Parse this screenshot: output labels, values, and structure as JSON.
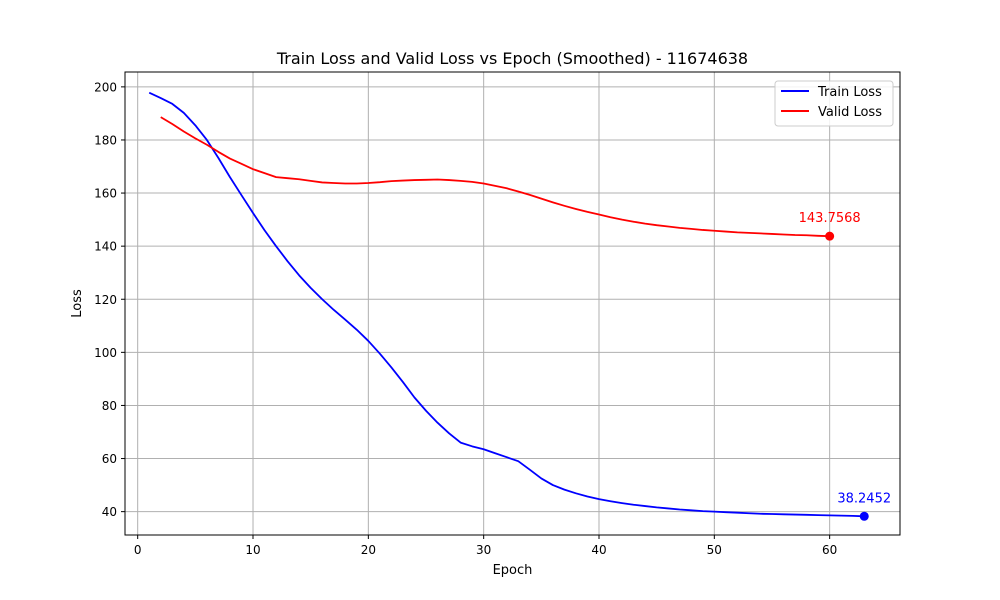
{
  "chart_data": {
    "type": "line",
    "title": "Train Loss and Valid Loss vs Epoch (Smoothed) - 11674638",
    "xlabel": "Epoch",
    "ylabel": "Loss",
    "xlim": [
      -1.1,
      66.1
    ],
    "ylim": [
      31.2,
      205.6
    ],
    "xticks": [
      0,
      10,
      20,
      30,
      40,
      50,
      60
    ],
    "yticks": [
      40,
      60,
      80,
      100,
      120,
      140,
      160,
      180,
      200
    ],
    "grid": true,
    "legend_position": "top-right",
    "series": [
      {
        "name": "Train Loss",
        "color": "#0000ff",
        "end_label": "38.2452",
        "x": [
          1,
          2,
          3,
          4,
          5,
          6,
          7,
          8,
          9,
          10,
          11,
          12,
          13,
          14,
          15,
          16,
          17,
          18,
          19,
          20,
          21,
          22,
          23,
          24,
          25,
          26,
          27,
          28,
          29,
          30,
          31,
          32,
          33,
          34,
          35,
          36,
          37,
          38,
          39,
          40,
          41,
          42,
          43,
          44,
          45,
          46,
          47,
          48,
          49,
          50,
          51,
          52,
          53,
          54,
          55,
          56,
          57,
          58,
          59,
          60,
          61,
          62,
          63
        ],
        "y": [
          197.8,
          195.8,
          193.6,
          190.2,
          185.5,
          180.0,
          173.2,
          166.0,
          159.2,
          152.5,
          146.0,
          140.0,
          134.3,
          129.0,
          124.3,
          120.0,
          116.0,
          112.3,
          108.5,
          104.3,
          99.5,
          94.3,
          88.8,
          83.0,
          78.0,
          73.5,
          69.5,
          66.0,
          64.6,
          63.5,
          62.0,
          60.5,
          59.0,
          55.8,
          52.5,
          50.0,
          48.3,
          46.9,
          45.7,
          44.7,
          43.9,
          43.2,
          42.6,
          42.1,
          41.6,
          41.2,
          40.8,
          40.5,
          40.2,
          40.0,
          39.8,
          39.6,
          39.4,
          39.2,
          39.1,
          39.0,
          38.9,
          38.8,
          38.7,
          38.6,
          38.5,
          38.4,
          38.2452
        ]
      },
      {
        "name": "Valid Loss",
        "color": "#ff0000",
        "end_label": "143.7568",
        "x": [
          2,
          3,
          4,
          5,
          6,
          7,
          8,
          9,
          10,
          11,
          12,
          13,
          14,
          15,
          16,
          17,
          18,
          19,
          20,
          21,
          22,
          23,
          24,
          25,
          26,
          27,
          28,
          29,
          30,
          31,
          32,
          33,
          34,
          35,
          36,
          37,
          38,
          39,
          40,
          41,
          42,
          43,
          44,
          45,
          46,
          47,
          48,
          49,
          50,
          51,
          52,
          53,
          54,
          55,
          56,
          57,
          58,
          59,
          60
        ],
        "y": [
          188.6,
          186.0,
          183.2,
          180.6,
          178.2,
          175.5,
          173.0,
          171.0,
          169.0,
          167.5,
          166.0,
          165.6,
          165.2,
          164.6,
          164.0,
          163.8,
          163.6,
          163.6,
          163.8,
          164.1,
          164.5,
          164.7,
          164.9,
          165.0,
          165.1,
          164.9,
          164.6,
          164.2,
          163.6,
          162.7,
          161.8,
          160.6,
          159.3,
          157.9,
          156.5,
          155.2,
          154.0,
          152.9,
          151.9,
          150.9,
          150.0,
          149.2,
          148.5,
          147.9,
          147.4,
          146.9,
          146.5,
          146.1,
          145.8,
          145.5,
          145.2,
          145.0,
          144.8,
          144.6,
          144.4,
          144.2,
          144.1,
          143.9,
          143.7568
        ]
      }
    ]
  }
}
